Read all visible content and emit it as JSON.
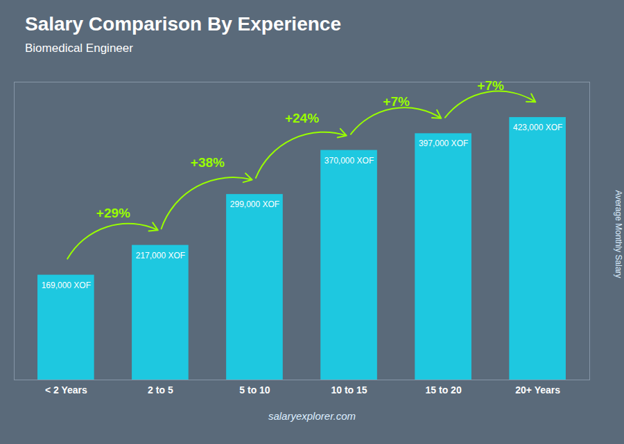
{
  "chart_data": {
    "type": "bar",
    "title": "Salary Comparison By Experience",
    "subtitle": "Biomedical Engineer",
    "ylabel": "Average Monthly Salary",
    "caption": "salaryexplorer.com",
    "categories": [
      "< 2 Years",
      "2 to 5",
      "5 to 10",
      "10 to 15",
      "15 to 20",
      "20+ Years"
    ],
    "values": [
      169000,
      217000,
      299000,
      370000,
      397000,
      423000
    ],
    "value_labels": [
      "169,000 XOF",
      "217,000 XOF",
      "299,000 XOF",
      "370,000 XOF",
      "397,000 XOF",
      "423,000 XOF"
    ],
    "data_labels": true,
    "color": "#1EC8E0",
    "ylim": [
      0,
      480000
    ],
    "tick_labels": "x",
    "grid": false,
    "annotations": [
      {
        "text": "+29%",
        "from": "< 2 Years",
        "to": "2 to 5",
        "color": "#99FF00"
      },
      {
        "text": "+38%",
        "from": "2 to 5",
        "to": "5 to 10",
        "color": "#99FF00"
      },
      {
        "text": "+24%",
        "from": "5 to 10",
        "to": "10 to 15",
        "color": "#99FF00"
      },
      {
        "text": "+7%",
        "from": "10 to 15",
        "to": "15 to 20",
        "color": "#99FF00"
      },
      {
        "text": "+7%",
        "from": "15 to 20",
        "to": "20+ Years",
        "color": "#99FF00"
      }
    ]
  }
}
